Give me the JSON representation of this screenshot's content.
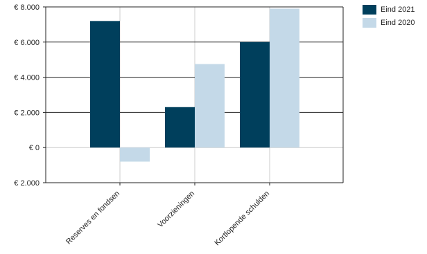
{
  "chart_data": {
    "type": "bar",
    "categories": [
      "Reserves en fondsen",
      "Voorzieningen",
      "Kortlopende schulden"
    ],
    "series": [
      {
        "name": "Eind 2021",
        "color": "#003f5c",
        "values": [
          7200,
          2300,
          6000
        ]
      },
      {
        "name": "Eind 2020",
        "color": "#c4d9e8",
        "values": [
          -800,
          4750,
          7900
        ]
      }
    ],
    "ylim": [
      -2000,
      8000
    ],
    "yticks": [
      8000,
      6000,
      4000,
      2000,
      0,
      -2000
    ],
    "ytick_labels": [
      "€ 8.000",
      "€ 6.000",
      "€ 4.000",
      "€ 2.000",
      "€ 0",
      "€  2.000"
    ],
    "legend_position": "top-right",
    "grid": true
  }
}
